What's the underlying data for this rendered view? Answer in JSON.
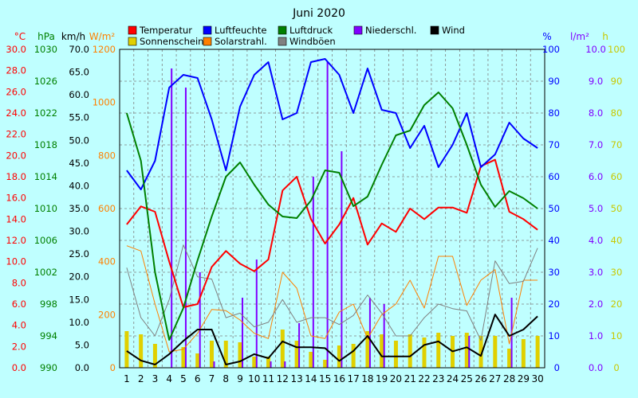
{
  "chart_data": {
    "type": "line",
    "title": "Juni 2020",
    "x": [
      1,
      2,
      3,
      4,
      5,
      6,
      7,
      8,
      9,
      10,
      11,
      12,
      13,
      14,
      15,
      16,
      17,
      18,
      19,
      20,
      21,
      22,
      23,
      24,
      25,
      26,
      27,
      28,
      29,
      30
    ],
    "legend": [
      {
        "label": "Temperatur",
        "color": "#ff0000"
      },
      {
        "label": "Luftfeuchte",
        "color": "#0000ff"
      },
      {
        "label": "Luftdruck",
        "color": "#008000"
      },
      {
        "label": "Niederschl.",
        "color": "#8000ff"
      },
      {
        "label": "Wind",
        "color": "#000000"
      },
      {
        "label": "Sonnenschein",
        "color": "#e0d000"
      },
      {
        "label": "Solarstrahl.",
        "color": "#ff8000"
      },
      {
        "label": "Windböen",
        "color": "#808080"
      }
    ],
    "axes": {
      "temp": {
        "unit": "°C",
        "color": "#ff0000",
        "min": 0,
        "max": 30,
        "step": 2,
        "decimals": 1
      },
      "pressure": {
        "unit": "hPa",
        "color": "#008000",
        "min": 990,
        "max": 1030,
        "step": 4,
        "decimals": 0
      },
      "wind": {
        "unit": "km/h",
        "color": "#000000",
        "min": 0,
        "max": 70,
        "step": 5,
        "decimals": 1
      },
      "solar": {
        "unit": "W/m²",
        "color": "#ff8000",
        "min": 0,
        "max": 1200,
        "step": 200,
        "decimals": 0
      },
      "humidity": {
        "unit": "%",
        "color": "#0000ff",
        "min": 0,
        "max": 100,
        "step": 10,
        "decimals": 0
      },
      "rain": {
        "unit": "l/m²",
        "color": "#8000ff",
        "min": 0,
        "max": 10,
        "step": 1,
        "decimals": 1
      },
      "sun": {
        "unit": "h",
        "color": "#c8c800",
        "min": 0,
        "max": 100,
        "step": 10,
        "decimals": 0
      }
    },
    "series": [
      {
        "name": "Temperatur",
        "axis": "temp",
        "color": "#ff0000",
        "width": 2,
        "values": [
          13.5,
          15.2,
          14.7,
          10.0,
          5.7,
          6.0,
          9.5,
          11.0,
          9.8,
          9.1,
          10.2,
          16.7,
          18.0,
          14.0,
          11.7,
          13.5,
          16.0,
          11.6,
          13.6,
          12.8,
          15.0,
          14.0,
          15.1,
          15.1,
          14.6,
          19.0,
          19.6,
          14.7,
          14.0,
          13.0
        ]
      },
      {
        "name": "Luftfeuchte",
        "axis": "humidity",
        "color": "#0000ff",
        "width": 2,
        "values": [
          62,
          56,
          65,
          88,
          92,
          91,
          78,
          62,
          82,
          92,
          96,
          78,
          80,
          96,
          97,
          92,
          80,
          94,
          81,
          80,
          69,
          76,
          63,
          70,
          80,
          63,
          67,
          77,
          72,
          69
        ]
      },
      {
        "name": "Luftdruck",
        "axis": "pressure",
        "color": "#008000",
        "width": 2,
        "values": [
          1022,
          1016,
          1002,
          993.5,
          997.5,
          1003.5,
          1009,
          1014,
          1015.8,
          1013,
          1010.5,
          1009,
          1008.8,
          1011,
          1014.8,
          1014.5,
          1010.3,
          1011.5,
          1015.5,
          1019.2,
          1019.8,
          1023,
          1024.6,
          1022.6,
          1018,
          1013,
          1010.2,
          1012.2,
          1011.3,
          1010
        ]
      },
      {
        "name": "Wind",
        "axis": "wind",
        "color": "#000000",
        "width": 2,
        "values": [
          3.7,
          1.6,
          0.7,
          3.0,
          5.9,
          8.4,
          8.4,
          0.7,
          1.4,
          3.0,
          2.1,
          5.8,
          4.5,
          4.5,
          4.3,
          1.5,
          3.7,
          7.0,
          2.5,
          2.5,
          2.5,
          5.0,
          5.8,
          3.6,
          4.5,
          2.6,
          11.7,
          7.0,
          8.4,
          11.3
        ]
      },
      {
        "name": "Solarstrahl.",
        "axis": "solar",
        "color": "#ff8000",
        "width": 1,
        "values": [
          460,
          440,
          240,
          60,
          70,
          130,
          220,
          215,
          180,
          130,
          110,
          360,
          300,
          120,
          110,
          210,
          240,
          110,
          200,
          240,
          330,
          225,
          420,
          420,
          235,
          330,
          370,
          90,
          330,
          330
        ]
      },
      {
        "name": "Windböen",
        "axis": "wind",
        "color": "#808080",
        "width": 1,
        "values": [
          22,
          11,
          7,
          15,
          27,
          20,
          19.5,
          11,
          12,
          9,
          10,
          15,
          10,
          11,
          11,
          9.5,
          11.5,
          16,
          12,
          7,
          7,
          11,
          14,
          13,
          12.5,
          6,
          23.5,
          18.5,
          19,
          26.3
        ]
      }
    ],
    "bars": [
      {
        "name": "Sonnenschein",
        "axis": "sun",
        "color": "#e0d000",
        "width": 5,
        "offset": 0,
        "values": [
          11.5,
          10.5,
          7.5,
          0,
          6.5,
          4.5,
          8.5,
          8.5,
          8,
          3.5,
          3.5,
          12,
          8.5,
          5,
          2.5,
          7,
          7.5,
          11.5,
          10.5,
          8.5,
          10.5,
          9.5,
          11,
          10,
          11,
          10,
          10,
          6,
          9,
          10
        ]
      },
      {
        "name": "Niederschl.",
        "axis": "rain",
        "color": "#8000ff",
        "width": 2,
        "offset": 3,
        "values": [
          0,
          0,
          0,
          9.4,
          8.8,
          3.0,
          0.2,
          0,
          2.2,
          3.4,
          0.2,
          0.2,
          1.4,
          6.0,
          9.6,
          6.8,
          0,
          2.2,
          2.0,
          0,
          0,
          0,
          0,
          0,
          1.0,
          0,
          0,
          2.2,
          0,
          0
        ]
      }
    ],
    "grid": true,
    "legend_placement": "top"
  }
}
